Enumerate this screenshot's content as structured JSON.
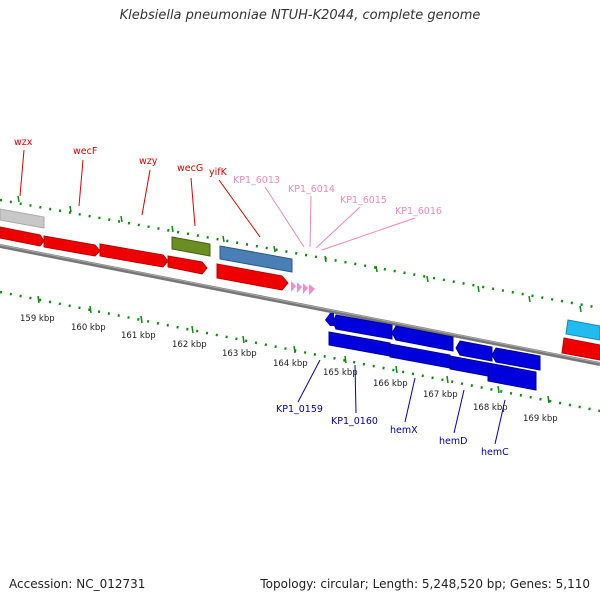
{
  "title": "Klebsiella pneumoniae NTUH-K2044, complete genome",
  "footer": {
    "accession": "Accession: NC_012731",
    "topology": "Topology: circular; Length: 5,248,520 bp; Genes: 5,110"
  },
  "colors": {
    "red_gene": "#ee0000",
    "blue_gene": "#0000dd",
    "olive_gene": "#6b8e23",
    "steel_gene": "#4a7fb5",
    "gray_gene": "#bbbbbb",
    "cyan_gene": "#22bbee",
    "pink_gene": "#ff88cc",
    "ruler": "#118811",
    "backbone": "#777777",
    "top_labels": "#dd0000",
    "pink_labels": "#ee88bb",
    "bottom_labels": "#0000aa"
  },
  "ruler_ticks": [
    "159 kbp",
    "160 kbp",
    "161 kbp",
    "162 kbp",
    "163 kbp",
    "164 kbp",
    "165 kbp",
    "166 kbp",
    "167 kbp",
    "168 kbp",
    "169 kbp"
  ],
  "gene_labels_top": [
    "wzx",
    "wecF",
    "wzy",
    "wecG",
    "yifK"
  ],
  "gene_labels_pink": [
    "KP1_6013",
    "KP1_6014",
    "KP1_6015",
    "KP1_6016"
  ],
  "gene_labels_bottom": [
    "KP1_0159",
    "KP1_0160",
    "hemX",
    "hemD",
    "hemC"
  ]
}
